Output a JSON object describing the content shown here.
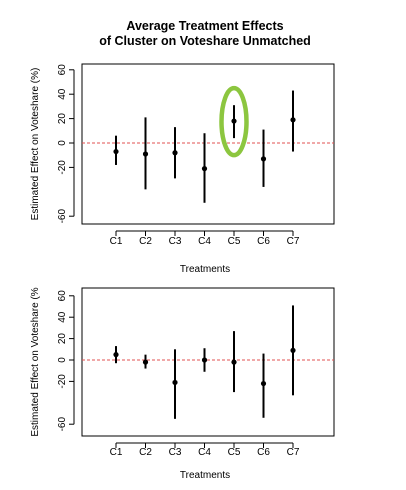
{
  "chart_data": [
    {
      "type": "scatter",
      "title_lines": [
        "Average Treatment Effects",
        "of Cluster on Voteshare Unmatched"
      ],
      "xlabel": "Treatments",
      "ylabel": "Estimated Effect on Voteshare (%)",
      "ylim": [
        -65,
        65
      ],
      "yticks": [
        -60,
        -20,
        0,
        20,
        40,
        60
      ],
      "categories": [
        "C1",
        "C2",
        "C3",
        "C4",
        "C5",
        "C6",
        "C7"
      ],
      "series": [
        {
          "estimates": [
            -7,
            -9,
            -8,
            -21,
            18,
            -13,
            19
          ],
          "lower": [
            -18,
            -38,
            -29,
            -49,
            4,
            -36,
            -7
          ],
          "upper": [
            6,
            21,
            13,
            8,
            31,
            11,
            43
          ]
        }
      ],
      "reference_line": 0,
      "highlight": {
        "category": "C5",
        "color": "#8cc63f"
      },
      "colors": {
        "points": "#000000",
        "reference_line": "#e05050"
      }
    },
    {
      "type": "scatter",
      "xlabel": "Treatments",
      "ylabel": "Estimated Effect on Voteshare (%",
      "ylim": [
        -65,
        65
      ],
      "yticks": [
        -60,
        -20,
        0,
        20,
        40,
        60
      ],
      "categories": [
        "C1",
        "C2",
        "C3",
        "C4",
        "C5",
        "C6",
        "C7"
      ],
      "series": [
        {
          "estimates": [
            5,
            -2,
            -21,
            0,
            -2,
            -22,
            9
          ],
          "lower": [
            -3,
            -8,
            -55,
            -11,
            -30,
            -54,
            -33
          ],
          "upper": [
            13,
            5,
            10,
            11,
            27,
            6,
            51
          ]
        }
      ],
      "reference_line": 0,
      "colors": {
        "points": "#000000",
        "reference_line": "#e05050"
      }
    }
  ]
}
